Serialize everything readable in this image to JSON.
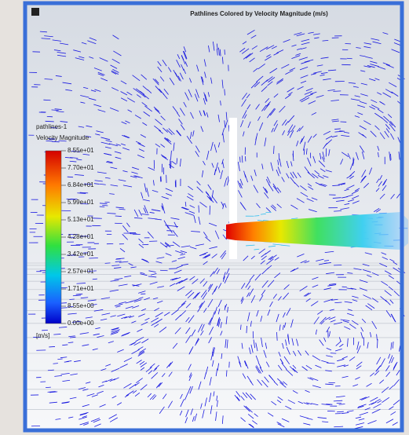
{
  "header": {
    "title": "Pathlines Colored by Velocity Magnitude (m/s)"
  },
  "legend": {
    "name": "pathlines-1",
    "quantity": "Velocity Magnitude",
    "ticks": [
      "8.55e+01",
      "7.70e+01",
      "6.84e+01",
      "5.99e+01",
      "5.13e+01",
      "4.28e+01",
      "3.42e+01",
      "2.57e+01",
      "1.71e+01",
      "8.55e+00",
      "0.00e+00"
    ],
    "unit": "[m/s]"
  }
}
